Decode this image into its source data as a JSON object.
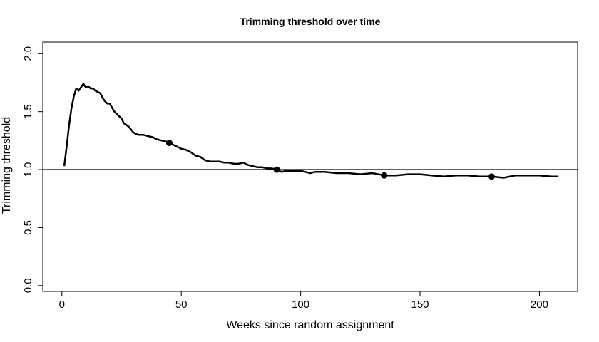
{
  "chart_data": {
    "type": "line",
    "title": "Trimming threshold over time",
    "xlabel": "Weeks since random assignment",
    "ylabel": "Trimming threshold",
    "xlim": [
      -8,
      216
    ],
    "ylim": [
      -0.05,
      2.1
    ],
    "xticks": [
      0,
      50,
      100,
      150,
      200
    ],
    "yticks": [
      0.0,
      0.5,
      1.0,
      1.5,
      2.0
    ],
    "ytick_labels": [
      "0.0",
      "0.5",
      "1.0",
      "1.5",
      "2.0"
    ],
    "grid": false,
    "reference_line": 1.0,
    "line_color": "#000000",
    "series": [
      {
        "x": [
          1,
          2,
          3,
          4,
          5,
          6,
          7,
          8,
          9,
          10,
          11,
          12,
          13,
          14,
          15,
          16,
          17,
          18,
          19,
          20,
          22,
          24,
          25,
          26,
          28,
          30,
          32,
          34,
          36,
          38,
          40,
          42,
          44,
          45,
          46,
          48,
          50,
          52,
          54,
          56,
          58,
          60,
          62,
          64,
          66,
          68,
          70,
          72,
          74,
          76,
          78,
          80,
          82,
          84,
          86,
          88,
          90,
          92,
          94,
          96,
          98,
          100,
          102,
          104,
          106,
          110,
          115,
          120,
          125,
          130,
          135,
          140,
          145,
          150,
          155,
          160,
          165,
          170,
          175,
          180,
          185,
          190,
          195,
          200,
          205,
          208
        ],
        "y": [
          1.03,
          1.2,
          1.38,
          1.53,
          1.63,
          1.7,
          1.68,
          1.71,
          1.74,
          1.71,
          1.72,
          1.7,
          1.7,
          1.68,
          1.67,
          1.66,
          1.62,
          1.59,
          1.57,
          1.57,
          1.5,
          1.46,
          1.44,
          1.4,
          1.37,
          1.32,
          1.3,
          1.3,
          1.29,
          1.28,
          1.26,
          1.25,
          1.24,
          1.23,
          1.22,
          1.2,
          1.18,
          1.17,
          1.15,
          1.12,
          1.11,
          1.08,
          1.07,
          1.07,
          1.07,
          1.06,
          1.06,
          1.05,
          1.05,
          1.06,
          1.04,
          1.03,
          1.02,
          1.02,
          1.01,
          1.01,
          1.0,
          0.98,
          0.99,
          0.99,
          0.99,
          0.99,
          0.98,
          0.97,
          0.98,
          0.98,
          0.97,
          0.97,
          0.96,
          0.97,
          0.95,
          0.95,
          0.96,
          0.96,
          0.95,
          0.94,
          0.95,
          0.95,
          0.94,
          0.94,
          0.93,
          0.95,
          0.95,
          0.95,
          0.94,
          0.94
        ]
      }
    ],
    "markers": [
      {
        "x": 45,
        "y": 1.23
      },
      {
        "x": 90,
        "y": 1.0
      },
      {
        "x": 135,
        "y": 0.95
      },
      {
        "x": 180,
        "y": 0.94
      }
    ]
  }
}
